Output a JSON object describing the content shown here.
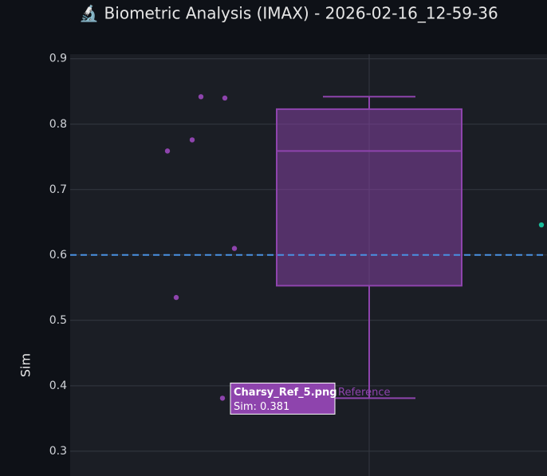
{
  "chart_data": {
    "type": "box",
    "title": "🔬 Biometric Analysis (IMAX) - 2026-02-16_12-59-36",
    "y_label": "Sim",
    "ylim": [
      0.262,
      0.907
    ],
    "yticks": [
      0.3,
      0.4,
      0.5,
      0.6,
      0.7,
      0.8,
      0.9
    ],
    "grid": true,
    "reference_line": 0.6,
    "reference_color": "#4a90e2",
    "series": [
      {
        "name": "Reference",
        "color": "#8e44ad",
        "box": {
          "lower": 0.381,
          "q1": 0.553,
          "median": 0.759,
          "q3": 0.823,
          "upper": 0.842
        },
        "values": [
          0.759,
          0.776,
          0.842,
          0.84,
          0.61,
          0.535,
          0.381
        ]
      },
      {
        "color": "#1abc9c",
        "values": [
          0.646
        ]
      }
    ],
    "tooltip": {
      "title": "Charsy_Ref_5.png",
      "text": "Sim: 0.381"
    }
  }
}
